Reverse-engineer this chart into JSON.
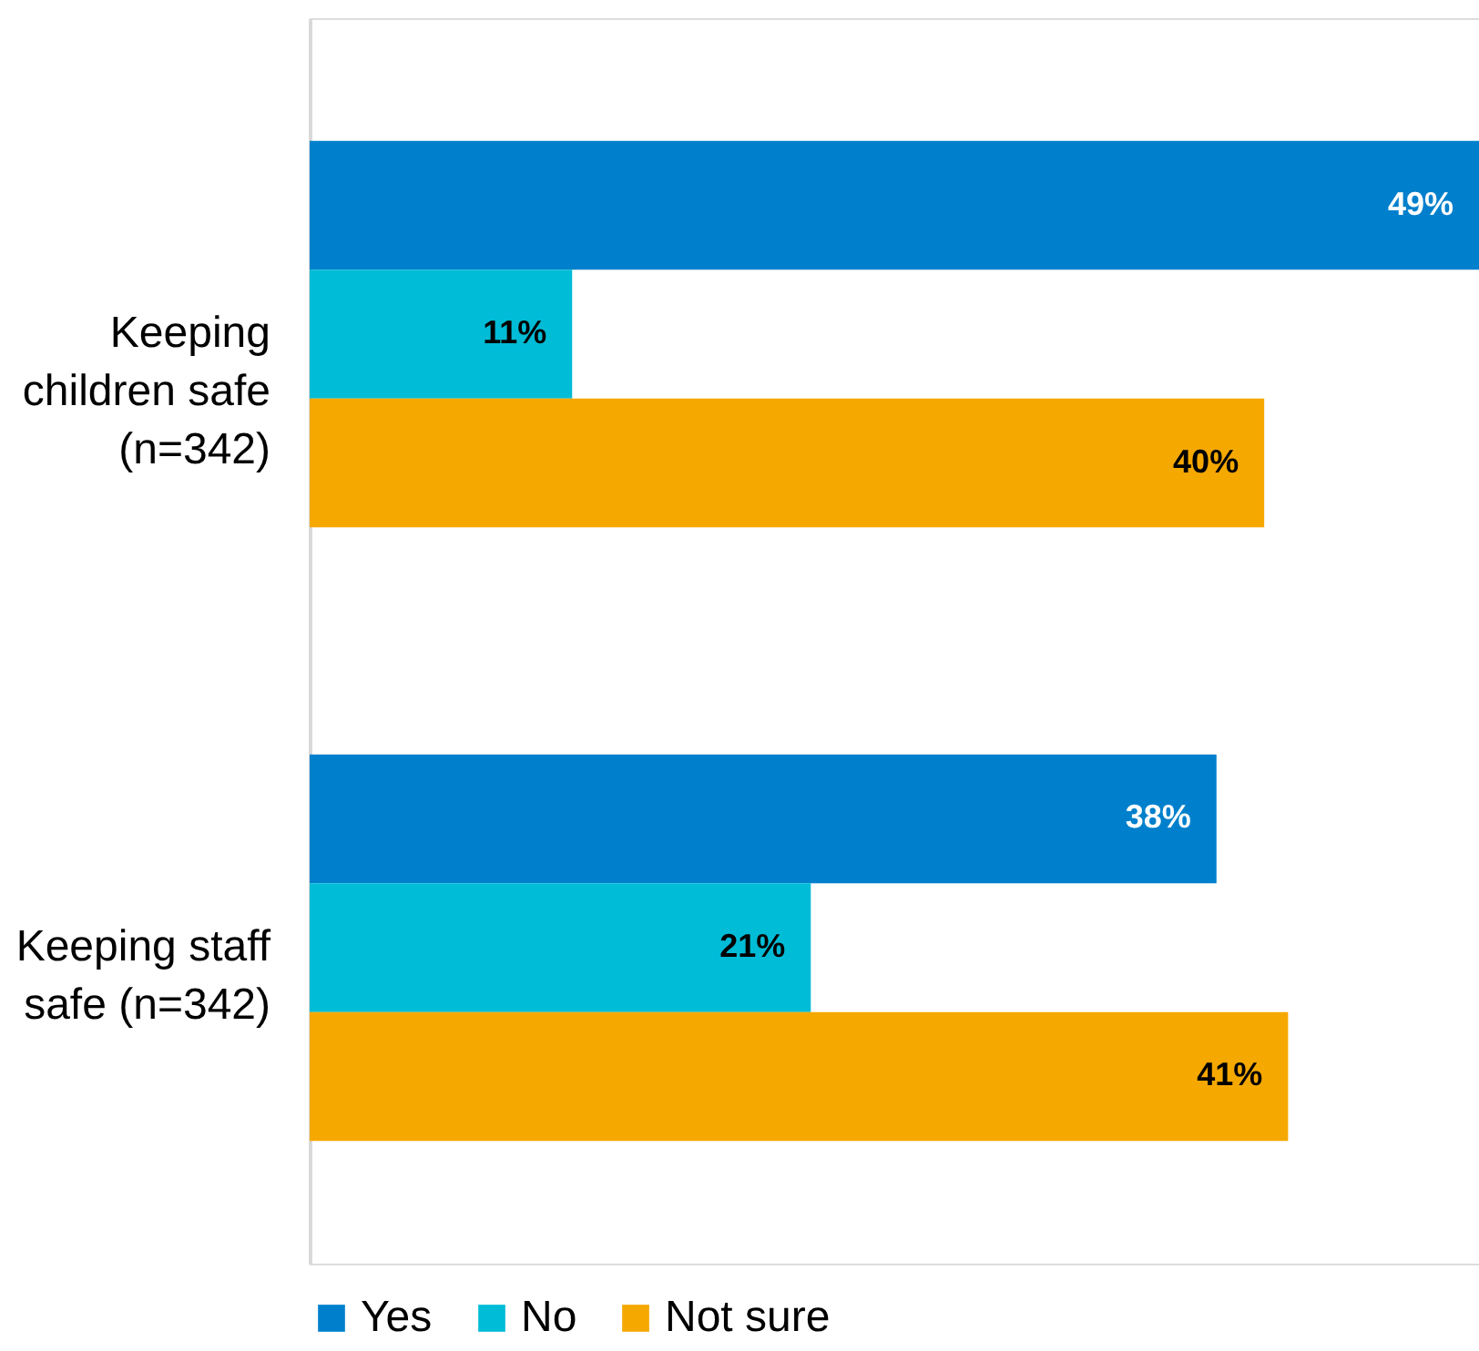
{
  "chart_data": {
    "type": "bar",
    "orientation": "horizontal",
    "categories": [
      "Keeping children safe (n=342)",
      "Keeping staff safe (n=342)"
    ],
    "series": [
      {
        "name": "Yes",
        "color": "#0080cc",
        "values": [
          49,
          38
        ],
        "value_labels": [
          "49%",
          "38%"
        ]
      },
      {
        "name": "No",
        "color": "#00bcd6",
        "values": [
          11,
          21
        ],
        "value_labels": [
          "11%",
          "21%"
        ]
      },
      {
        "name": "Not sure",
        "color": "#f5a800",
        "values": [
          40,
          41
        ],
        "value_labels": [
          "40%",
          "41%"
        ]
      }
    ],
    "legend": "bottom left",
    "grid": false
  }
}
